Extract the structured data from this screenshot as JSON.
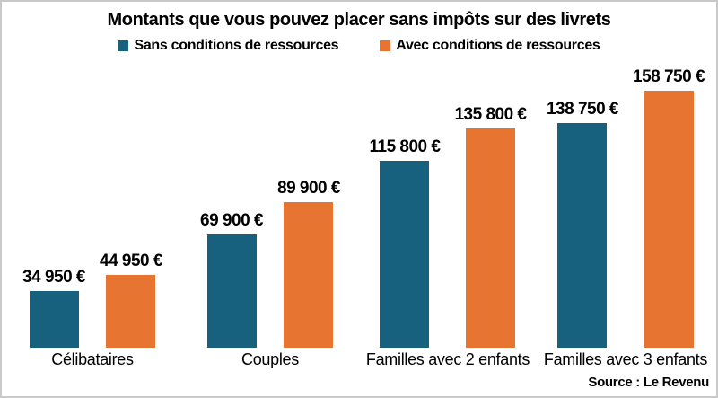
{
  "title": "Montants que vous pouvez placer sans impôts sur des livrets",
  "source": "Source : Le Revenu",
  "colors": {
    "bar_blue": "#17617f",
    "bar_orange": "#e87432",
    "border": "#c9c9c9",
    "text": "#000000"
  },
  "chart_data": {
    "type": "bar",
    "title": "Montants que vous pouvez placer sans impôts sur des livrets",
    "categories": [
      "Célibataires",
      "Couples",
      "Familles avec 2 enfants",
      "Familles avec 3 enfants"
    ],
    "series": [
      {
        "name": "Sans conditions de ressources",
        "color": "#17617f",
        "values": [
          34950,
          69900,
          115800,
          138750
        ],
        "labels": [
          "34 950 €",
          "69 900 €",
          "115 800 €",
          "138 750 €"
        ]
      },
      {
        "name": "Avec conditions de ressources",
        "color": "#e87432",
        "values": [
          44950,
          89900,
          135800,
          158750
        ],
        "labels": [
          "44 950 €",
          "89 900 €",
          "135 800 €",
          "158 750 €"
        ]
      }
    ],
    "unit": "€",
    "xlabel": "",
    "ylabel": "",
    "ylim": [
      0,
      160000
    ],
    "grid": false,
    "value_labels": true,
    "legend_position": "top",
    "source": "Source : Le Revenu"
  }
}
